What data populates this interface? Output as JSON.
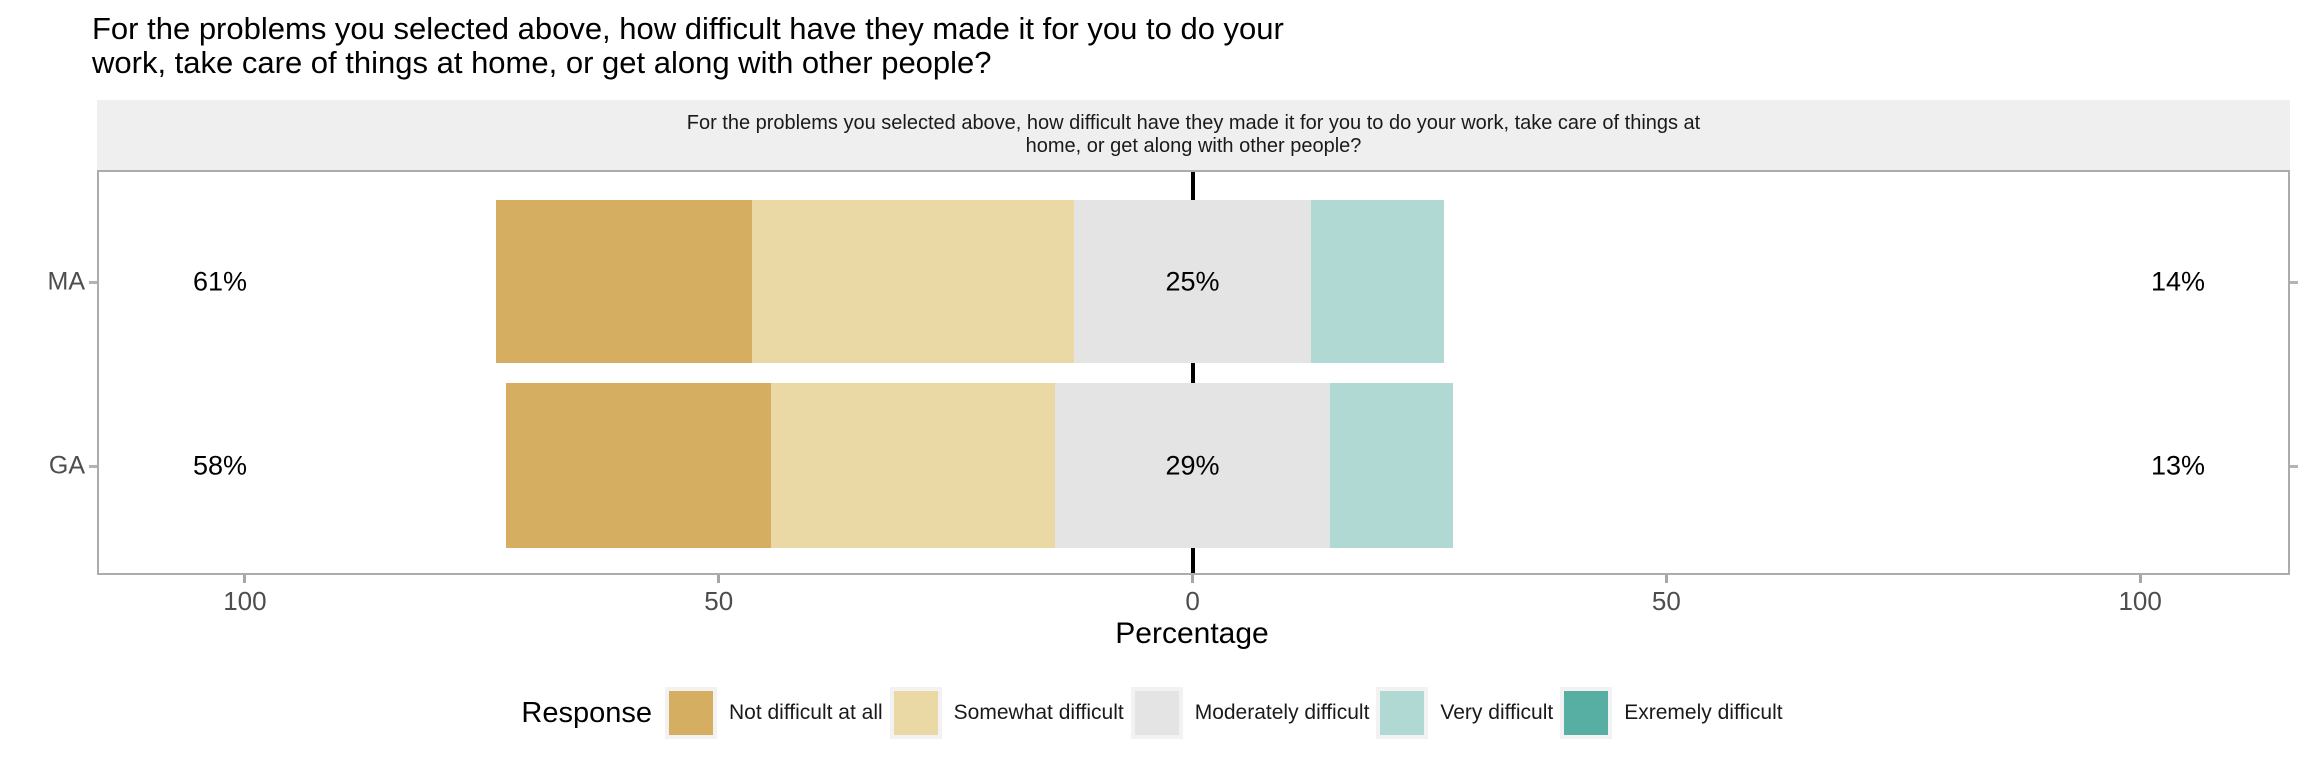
{
  "title": {
    "line1": "For the problems you selected above, how difficult have they made it for you to do your",
    "line2": "work, take care of things at home, or get along with other people?"
  },
  "facet_strip": {
    "line1": "For the problems you selected above, how difficult have they made it for you to do your work, take care of things at",
    "line2": "home, or get along with other people?"
  },
  "chart_data": {
    "type": "bar",
    "variant": "diverging_stacked_likert",
    "question": "For the problems you selected above, how difficult have they made it for you to do your work, take care of things at home, or get along with other people?",
    "categories": [
      "MA",
      "GA"
    ],
    "series": [
      {
        "name": "Not difficult at all",
        "color": "#D6AE61",
        "values": [
          27,
          28
        ]
      },
      {
        "name": "Somewhat difficult",
        "color": "#EBD9A5",
        "values": [
          34,
          30
        ]
      },
      {
        "name": "Moderately difficult",
        "color": "#E4E4E4",
        "values": [
          25,
          29
        ]
      },
      {
        "name": "Very difficult",
        "color": "#AFD9D2",
        "values": [
          14,
          13
        ]
      },
      {
        "name": "Exremely difficult",
        "color": "#57AFA4",
        "values": [
          0,
          0
        ]
      }
    ],
    "row_summary_labels": [
      {
        "category": "MA",
        "left_total": "61%",
        "neutral": "25%",
        "right_total": "14%"
      },
      {
        "category": "GA",
        "left_total": "58%",
        "neutral": "29%",
        "right_total": "13%"
      }
    ],
    "x_axis": {
      "label": "Percentage",
      "tick_labels": [
        "100",
        "50",
        "0",
        "50",
        "100"
      ],
      "tick_values": [
        -100,
        -50,
        0,
        50,
        100
      ],
      "range": [
        -115.4,
        115.6
      ]
    },
    "legend": {
      "title": "Response",
      "position": "bottom"
    },
    "layout_hints": {
      "neutral_centered_at_zero": true,
      "zero_reference_line": true,
      "grid": false
    },
    "colors": {
      "strip_background": "#EFEFEF",
      "panel_border": "#ACACAC",
      "axis_text": "#4D4D4D",
      "zero_line": "#000000",
      "background": "#FFFFFF"
    }
  }
}
